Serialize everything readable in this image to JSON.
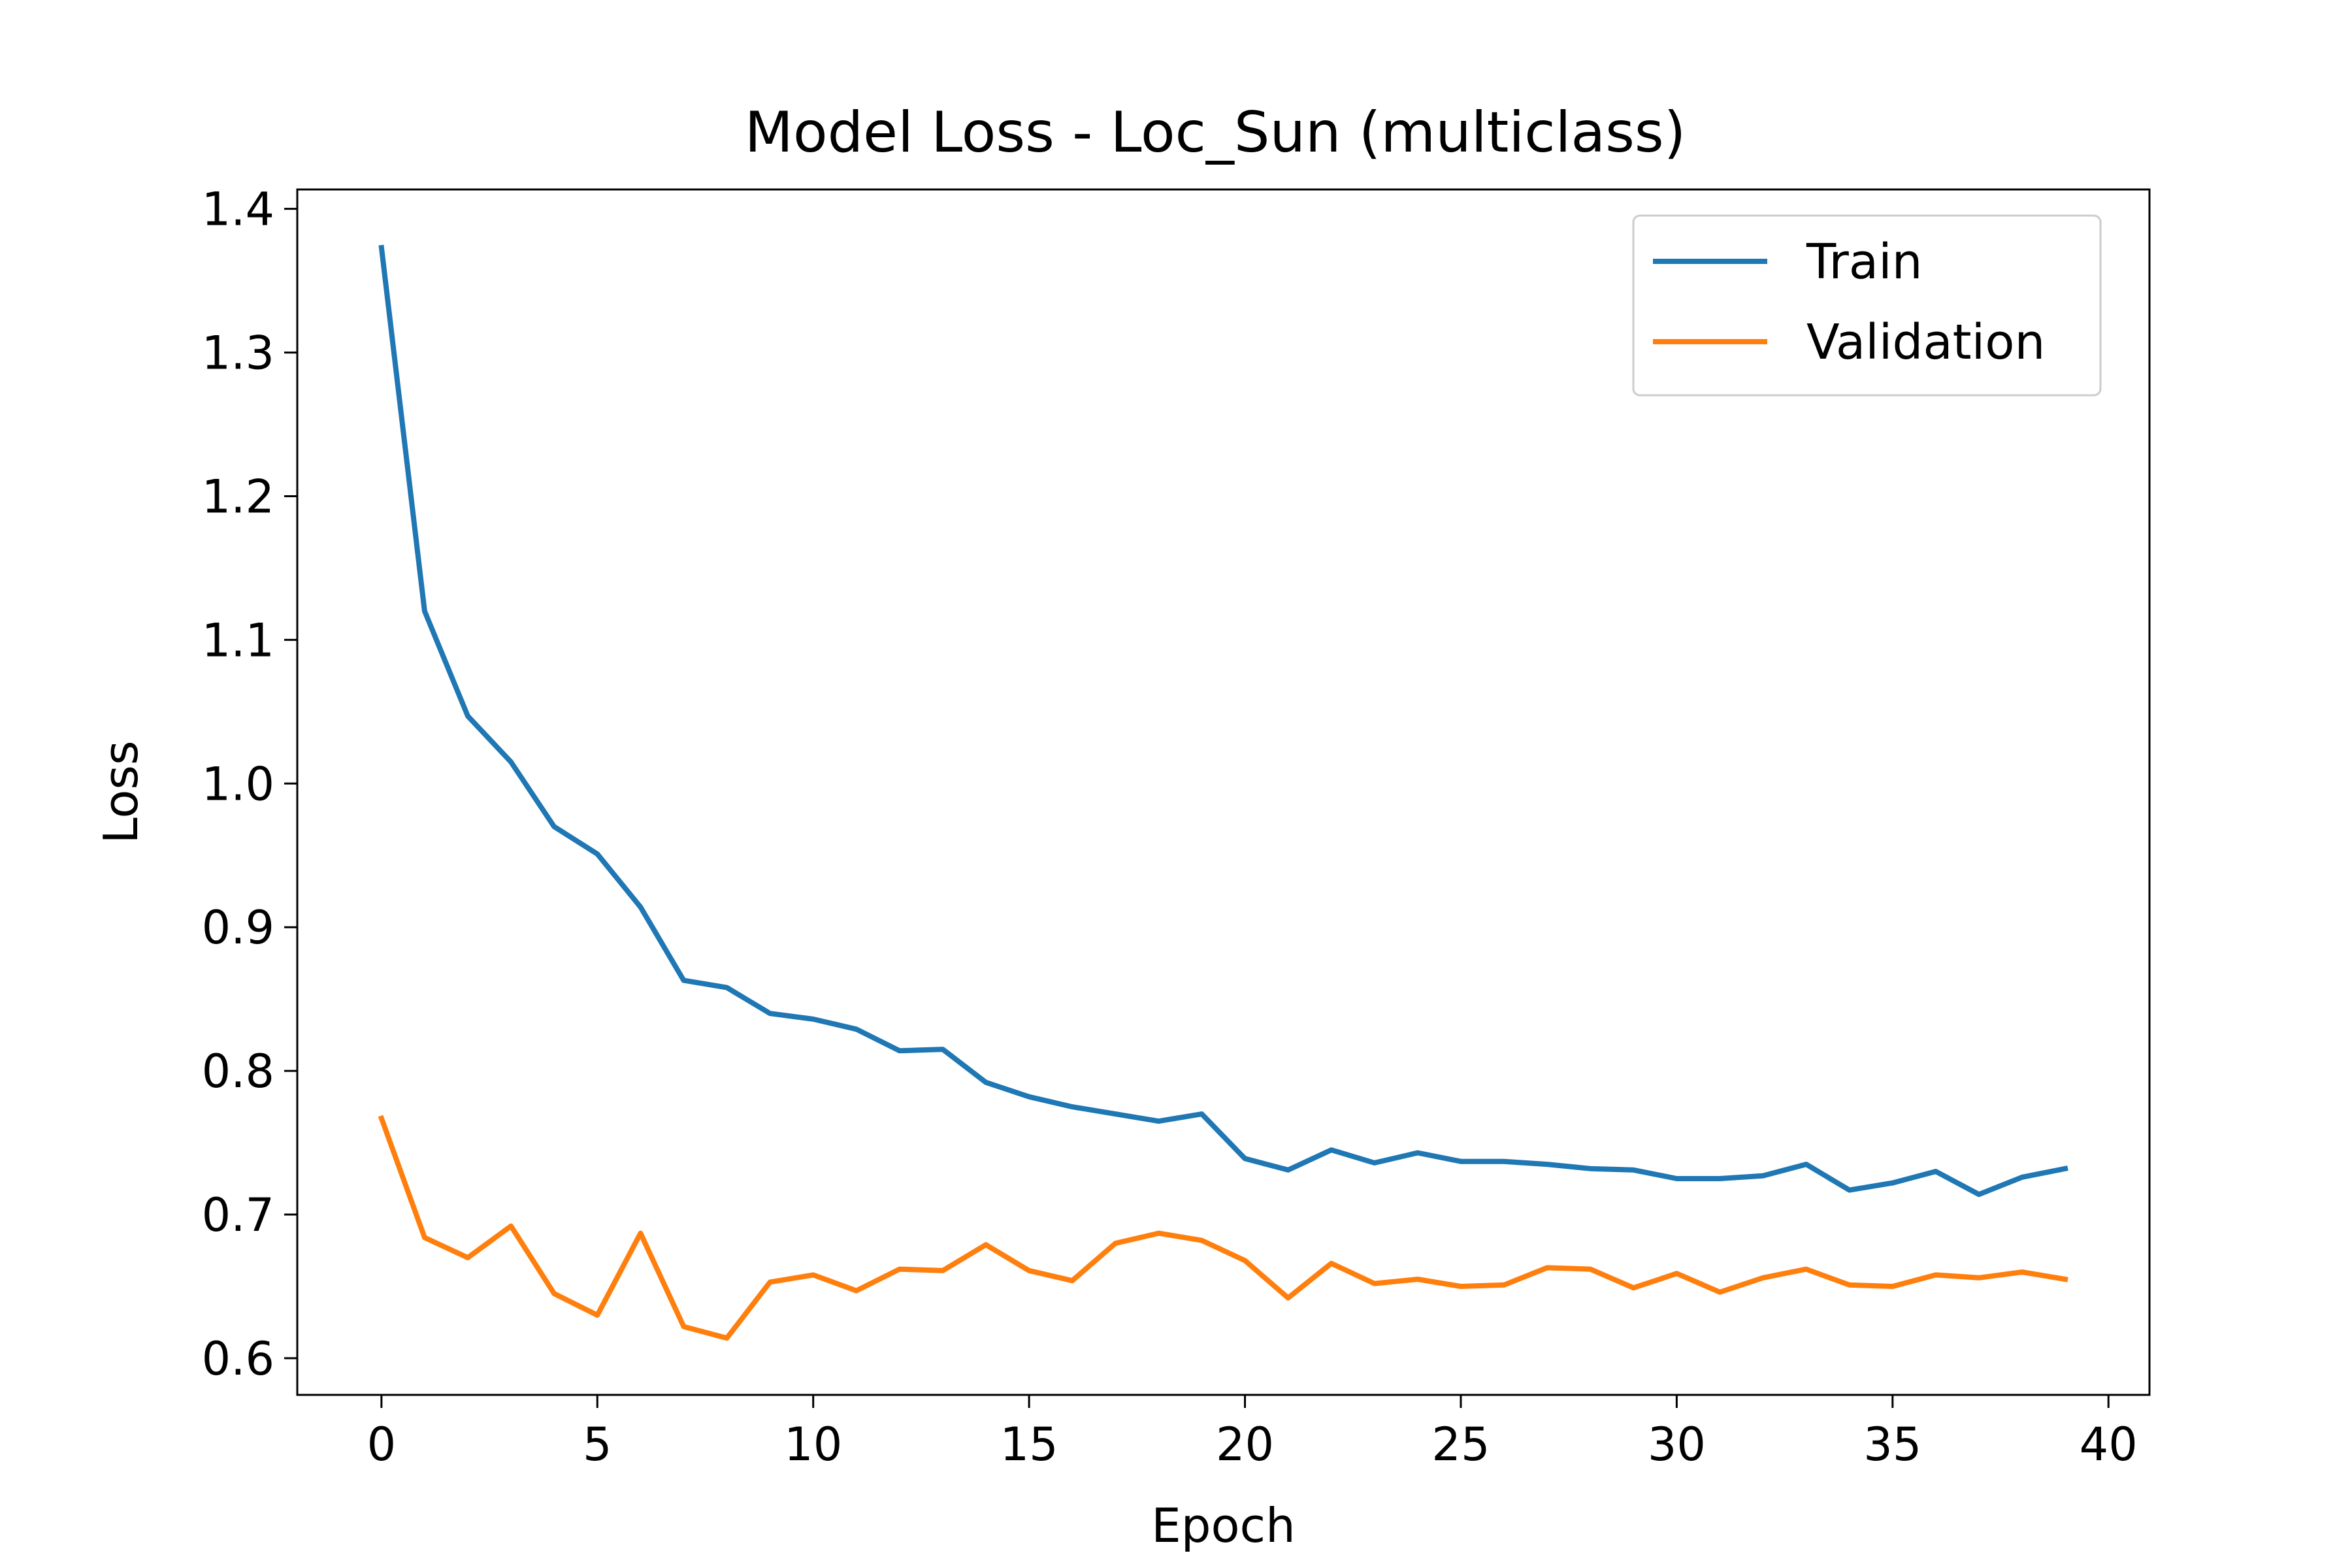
{
  "chart_data": {
    "type": "line",
    "title": "Model Loss - Loc_Sun (multiclass)",
    "xlabel": "Epoch",
    "ylabel": "Loss",
    "xlim": [
      -1.95,
      40.95
    ],
    "ylim": [
      0.5745,
      1.4135
    ],
    "xticks": [
      0,
      5,
      10,
      15,
      20,
      25,
      30,
      35,
      40
    ],
    "yticks": [
      0.6,
      0.7,
      0.8,
      0.9,
      1.0,
      1.1,
      1.2,
      1.3,
      1.4
    ],
    "ytick_labels": [
      "0.6",
      "0.7",
      "0.8",
      "0.9",
      "1.0",
      "1.1",
      "1.2",
      "1.3",
      "1.4"
    ],
    "grid": false,
    "legend_position": "top-right",
    "x": [
      0,
      1,
      2,
      3,
      4,
      5,
      6,
      7,
      8,
      9,
      10,
      11,
      12,
      13,
      14,
      15,
      16,
      17,
      18,
      19,
      20,
      21,
      22,
      23,
      24,
      25,
      26,
      27,
      28,
      29,
      30,
      31,
      32,
      33,
      34,
      35,
      36,
      37,
      38,
      39
    ],
    "series": [
      {
        "name": "Train",
        "color": "#1f77b4",
        "values": [
          1.373,
          1.12,
          1.047,
          1.015,
          0.97,
          0.951,
          0.914,
          0.863,
          0.858,
          0.84,
          0.836,
          0.829,
          0.814,
          0.815,
          0.792,
          0.782,
          0.775,
          0.77,
          0.765,
          0.77,
          0.739,
          0.731,
          0.745,
          0.736,
          0.743,
          0.737,
          0.737,
          0.735,
          0.732,
          0.731,
          0.725,
          0.725,
          0.727,
          0.735,
          0.717,
          0.722,
          0.73,
          0.714,
          0.726,
          0.732
        ]
      },
      {
        "name": "Validation",
        "color": "#ff7f0e",
        "values": [
          0.767,
          0.684,
          0.67,
          0.692,
          0.645,
          0.63,
          0.687,
          0.622,
          0.614,
          0.653,
          0.658,
          0.647,
          0.662,
          0.661,
          0.679,
          0.661,
          0.654,
          0.68,
          0.687,
          0.682,
          0.668,
          0.642,
          0.666,
          0.652,
          0.655,
          0.65,
          0.651,
          0.663,
          0.662,
          0.649,
          0.659,
          0.646,
          0.656,
          0.662,
          0.651,
          0.65,
          0.658,
          0.656,
          0.66,
          0.655
        ]
      }
    ]
  }
}
